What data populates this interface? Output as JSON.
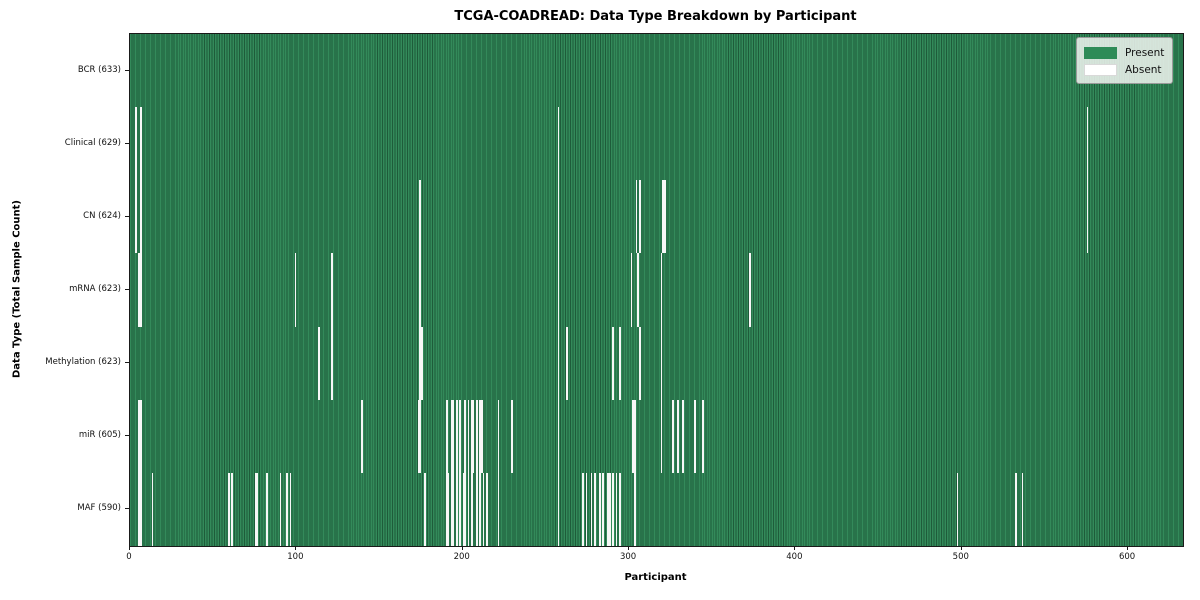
{
  "title": "TCGA-COADREAD: Data Type Breakdown by Participant",
  "legend": {
    "present": "Present",
    "absent": "Absent"
  },
  "colors": {
    "present_mid": "#338a5a",
    "present_dark": "#1e5c3a",
    "absent": "#f7f7f7",
    "legend_present_swatch": "#2e8b57",
    "legend_absent_swatch": "#ffffff"
  },
  "chart_data": {
    "type": "heatmap",
    "title": "TCGA-COADREAD: Data Type Breakdown by Participant",
    "xlabel": "Participant",
    "ylabel": "Data Type (Total Sample Count)",
    "xlim": [
      0,
      633
    ],
    "x_ticks": [
      0,
      100,
      200,
      300,
      400,
      500,
      600
    ],
    "total_participants": 633,
    "grid": false,
    "legend_position": "upper right",
    "legend_entries": [
      "Present",
      "Absent"
    ],
    "rows": [
      {
        "name": "BCR",
        "label": "BCR (633)",
        "present_count": 633,
        "absent_participants": []
      },
      {
        "name": "Clinical",
        "label": "Clinical (629)",
        "present_count": 629,
        "absent_participants": [
          3,
          6,
          257,
          575
        ]
      },
      {
        "name": "CN",
        "label": "CN (624)",
        "present_count": 624,
        "absent_participants": [
          3,
          6,
          174,
          257,
          304,
          306,
          320,
          321,
          575
        ]
      },
      {
        "name": "mRNA",
        "label": "mRNA (623)",
        "present_count": 623,
        "absent_participants": [
          5,
          6,
          99,
          121,
          174,
          257,
          301,
          305,
          319,
          372
        ]
      },
      {
        "name": "Methylation",
        "label": "Methylation (623)",
        "present_count": 623,
        "absent_participants": [
          113,
          121,
          174,
          175,
          257,
          262,
          290,
          294,
          306,
          319
        ]
      },
      {
        "name": "miR",
        "label": "miR (605)",
        "present_count": 605,
        "absent_participants": [
          5,
          6,
          139,
          173,
          174,
          190,
          193,
          194,
          196,
          198,
          201,
          203,
          205,
          206,
          208,
          210,
          211,
          221,
          229,
          257,
          302,
          303,
          319,
          326,
          329,
          332,
          339,
          344
        ]
      },
      {
        "name": "MAF",
        "label": "MAF (590)",
        "present_count": 590,
        "absent_participants": [
          5,
          6,
          13,
          59,
          61,
          75,
          76,
          82,
          90,
          94,
          96,
          177,
          190,
          191,
          193,
          194,
          196,
          198,
          200,
          201,
          203,
          205,
          208,
          210,
          212,
          214,
          221,
          257,
          272,
          274,
          277,
          279,
          282,
          284,
          287,
          288,
          290,
          292,
          294,
          303,
          497,
          532,
          536
        ]
      }
    ]
  }
}
